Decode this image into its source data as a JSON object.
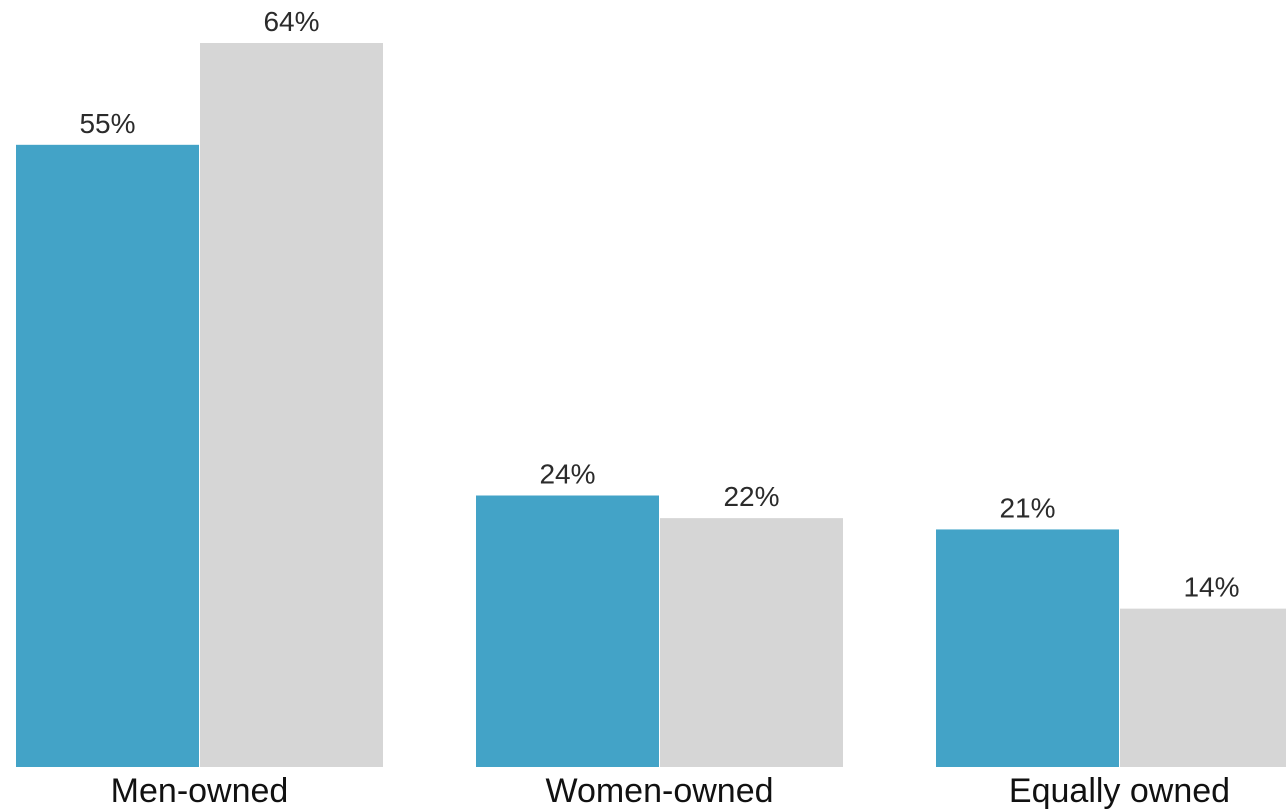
{
  "chart_data": {
    "type": "bar",
    "categories": [
      "Men-owned",
      "Women-owned",
      "Equally owned"
    ],
    "series": [
      {
        "values": [
          55,
          24,
          21
        ],
        "value_labels": [
          "55%",
          "24%",
          "21%"
        ],
        "color": "#43a3c7"
      },
      {
        "values": [
          64,
          22,
          14
        ],
        "value_labels": [
          "64%",
          "22%",
          "14%"
        ],
        "color": "#d6d6d6"
      }
    ],
    "ylim": [
      0,
      64
    ],
    "grid": false,
    "title": "",
    "xlabel": "",
    "ylabel": ""
  }
}
